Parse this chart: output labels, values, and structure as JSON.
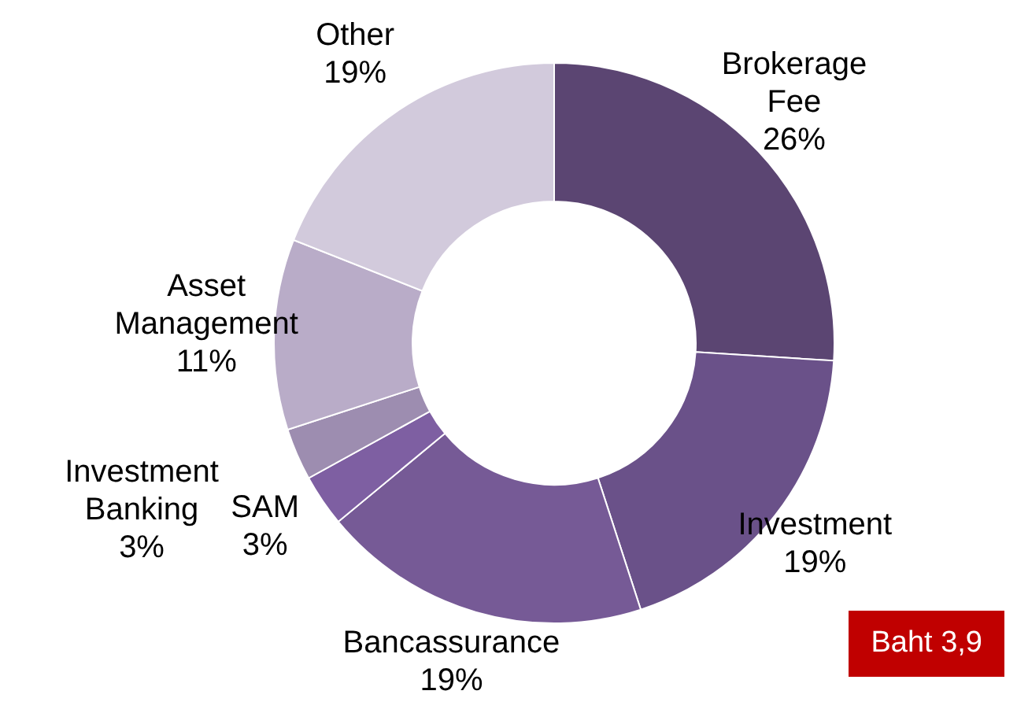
{
  "chart_data": {
    "type": "donut",
    "categories": [
      "Brokerage Fee",
      "Investment",
      "Bancassurance",
      "SAM",
      "Investment Banking",
      "Asset Management",
      "Other"
    ],
    "values": [
      26,
      19,
      19,
      3,
      3,
      11,
      19
    ],
    "value_labels": [
      "26%",
      "19%",
      "19%",
      "3%",
      "3%",
      "11%",
      "19%"
    ],
    "colors": [
      "#5b4572",
      "#6a5189",
      "#765a96",
      "#7e5fa2",
      "#9d8db0",
      "#b9acc8",
      "#d2cadc"
    ],
    "legend": false,
    "annotations": [
      "Baht 3,9"
    ]
  }
}
